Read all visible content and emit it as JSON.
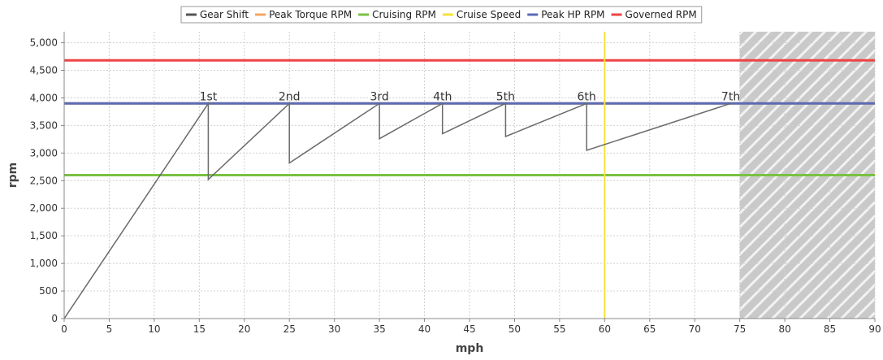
{
  "chart_data": {
    "type": "line",
    "xlabel": "mph",
    "ylabel": "rpm",
    "xlim": [
      0,
      90
    ],
    "ylim": [
      0,
      5200
    ],
    "x_ticks": [
      0,
      5,
      10,
      15,
      20,
      25,
      30,
      35,
      40,
      45,
      50,
      55,
      60,
      65,
      70,
      75,
      80,
      85,
      90
    ],
    "y_ticks": [
      0,
      500,
      1000,
      1500,
      2000,
      2500,
      3000,
      3500,
      4000,
      4500,
      5000
    ],
    "x_tick_labels": [
      "0",
      "5",
      "10",
      "15",
      "20",
      "25",
      "30",
      "35",
      "40",
      "45",
      "50",
      "55",
      "60",
      "65",
      "70",
      "75",
      "80",
      "85",
      "90"
    ],
    "y_tick_labels": [
      "0",
      "500",
      "1,000",
      "1,500",
      "2,000",
      "2,500",
      "3,000",
      "3,500",
      "4,000",
      "4,500",
      "5,000"
    ],
    "grid": true,
    "legend_position": "top",
    "legend": [
      {
        "name": "Gear Shift",
        "color": "#555555"
      },
      {
        "name": "Peak Torque RPM",
        "color": "#f4a460"
      },
      {
        "name": "Cruising RPM",
        "color": "#7ac143"
      },
      {
        "name": "Cruise Speed",
        "color": "#f5e33a"
      },
      {
        "name": "Peak HP RPM",
        "color": "#5b6bb5"
      },
      {
        "name": "Governed RPM",
        "color": "#ee4444"
      }
    ],
    "series": [
      {
        "name": "Gear Shift",
        "color": "#6a6a6a",
        "points": [
          [
            0,
            0
          ],
          [
            16,
            3900
          ],
          [
            16,
            2520
          ],
          [
            25,
            3900
          ],
          [
            25,
            2820
          ],
          [
            35,
            3900
          ],
          [
            35,
            3260
          ],
          [
            42,
            3900
          ],
          [
            42,
            3350
          ],
          [
            49,
            3900
          ],
          [
            49,
            3300
          ],
          [
            58,
            3900
          ],
          [
            58,
            3050
          ],
          [
            74,
            3900
          ]
        ]
      },
      {
        "name": "Peak Torque RPM",
        "color": "#f4a460",
        "y": 3900
      },
      {
        "name": "Peak HP RPM",
        "color": "#5b6bb5",
        "y": 3900
      },
      {
        "name": "Cruising RPM",
        "color": "#7ac143",
        "y": 2600
      },
      {
        "name": "Governed RPM",
        "color": "#ee4444",
        "y": 4680
      },
      {
        "name": "Cruise Speed",
        "color": "#f5e33a",
        "x": 60
      }
    ],
    "gear_labels": [
      {
        "text": "1st",
        "x": 16,
        "y": 3900
      },
      {
        "text": "2nd",
        "x": 25,
        "y": 3900
      },
      {
        "text": "3rd",
        "x": 35,
        "y": 3900
      },
      {
        "text": "4th",
        "x": 42,
        "y": 3900
      },
      {
        "text": "5th",
        "x": 49,
        "y": 3900
      },
      {
        "text": "6th",
        "x": 58,
        "y": 3900
      },
      {
        "text": "7th",
        "x": 74,
        "y": 3900
      }
    ],
    "hatched_region": {
      "x_from": 75,
      "x_to": 90
    }
  }
}
